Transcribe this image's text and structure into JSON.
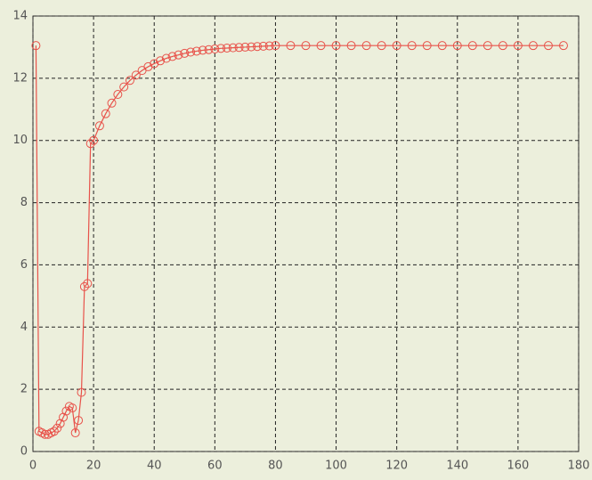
{
  "chart_data": {
    "type": "line",
    "x": [
      1,
      2,
      3,
      4,
      5,
      6,
      7,
      8,
      9,
      10,
      11,
      12,
      13,
      14,
      15,
      16,
      17,
      18,
      19,
      20,
      22,
      24,
      26,
      28,
      30,
      32,
      34,
      36,
      38,
      40,
      42,
      44,
      46,
      48,
      50,
      52,
      54,
      56,
      58,
      60,
      62,
      64,
      66,
      68,
      70,
      72,
      74,
      76,
      78,
      80,
      85,
      90,
      95,
      100,
      105,
      110,
      115,
      120,
      125,
      130,
      135,
      140,
      145,
      150,
      155,
      160,
      165,
      170,
      175
    ],
    "series": [
      {
        "color": "#e8524a",
        "values": [
          13.05,
          0.65,
          0.6,
          0.55,
          0.55,
          0.6,
          0.65,
          0.75,
          0.9,
          1.1,
          1.3,
          1.45,
          1.4,
          0.6,
          1.0,
          1.9,
          5.3,
          5.4,
          9.9,
          10.0,
          10.47,
          10.86,
          11.2,
          11.48,
          11.72,
          11.93,
          12.1,
          12.25,
          12.37,
          12.47,
          12.56,
          12.64,
          12.7,
          12.75,
          12.8,
          12.84,
          12.87,
          12.9,
          12.92,
          12.94,
          12.96,
          12.97,
          12.98,
          12.99,
          13.0,
          13.01,
          13.02,
          13.03,
          13.04,
          13.05,
          13.05,
          13.05,
          13.05,
          13.05,
          13.05,
          13.05,
          13.05,
          13.05,
          13.05,
          13.05,
          13.05,
          13.05,
          13.05,
          13.05,
          13.05,
          13.05,
          13.05,
          13.05,
          13.05
        ]
      }
    ],
    "xlim": [
      0,
      180
    ],
    "xticks": [
      0,
      20,
      40,
      60,
      80,
      100,
      120,
      140,
      160,
      180
    ],
    "ylim": [
      0,
      14
    ],
    "yticks": [
      0,
      2,
      4,
      6,
      8,
      10,
      12,
      14
    ],
    "grid": true
  }
}
